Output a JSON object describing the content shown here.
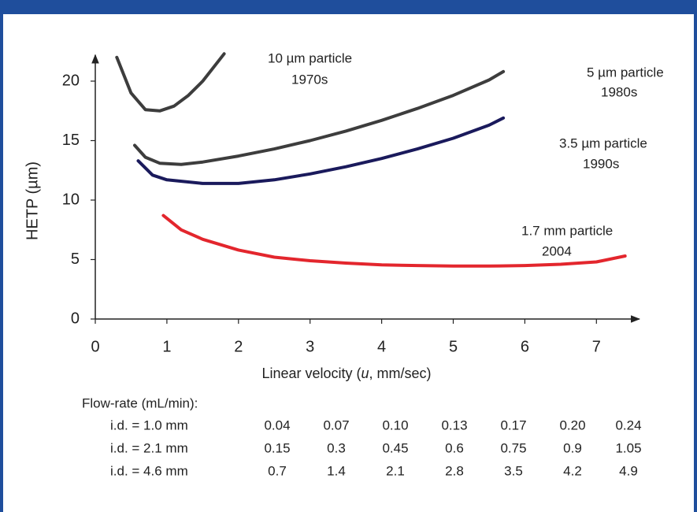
{
  "chart_data": {
    "type": "line",
    "y_label": "HETP (µm)",
    "x_label_parts": [
      "Linear velocity (",
      "u",
      ", mm/sec)"
    ],
    "xlim": [
      0,
      7.6
    ],
    "ylim": [
      0,
      22.2
    ],
    "xticks": [
      0,
      1,
      2,
      3,
      4,
      5,
      6,
      7
    ],
    "yticks": [
      0,
      5,
      10,
      15,
      20
    ],
    "grid": false,
    "series": [
      {
        "name": "10 µm particle",
        "annotation": "1970s",
        "color": "#3d3d3d",
        "x": [
          0.3,
          0.5,
          0.7,
          0.9,
          1.1,
          1.3,
          1.5,
          1.8
        ],
        "values": [
          22,
          19,
          17.6,
          17.5,
          17.9,
          18.8,
          20,
          22.3
        ]
      },
      {
        "name": "5 µm particle",
        "annotation": "1980s",
        "color": "#3d3d3d",
        "x": [
          0.55,
          0.7,
          0.9,
          1.2,
          1.5,
          2,
          2.5,
          3,
          3.5,
          4,
          4.5,
          5,
          5.5,
          5.7
        ],
        "values": [
          14.6,
          13.6,
          13.1,
          13,
          13.2,
          13.7,
          14.3,
          15,
          15.8,
          16.7,
          17.7,
          18.8,
          20.1,
          20.8
        ]
      },
      {
        "name": "3.5 µm particle",
        "annotation": "1990s",
        "color": "#1a1a5c",
        "x": [
          0.6,
          0.8,
          1,
          1.5,
          2,
          2.5,
          3,
          3.5,
          4,
          4.5,
          5,
          5.5,
          5.7
        ],
        "values": [
          13.3,
          12.1,
          11.7,
          11.4,
          11.4,
          11.7,
          12.2,
          12.8,
          13.5,
          14.3,
          15.2,
          16.3,
          16.9
        ]
      },
      {
        "name": "1.7 mm particle",
        "annotation": "2004",
        "color": "#e3262d",
        "x": [
          0.95,
          1.2,
          1.5,
          2,
          2.5,
          3,
          3.5,
          4,
          4.5,
          5,
          5.5,
          6,
          6.5,
          7,
          7.4
        ],
        "values": [
          8.7,
          7.5,
          6.7,
          5.8,
          5.2,
          4.9,
          4.7,
          4.55,
          4.5,
          4.45,
          4.45,
          4.5,
          4.6,
          4.8,
          5.3
        ]
      }
    ]
  },
  "table": {
    "title": "Flow-rate (mL/min):",
    "rows": [
      [
        "i.d. = 1.0 mm",
        "0.04",
        "0.07",
        "0.10",
        "0.13",
        "0.17",
        "0.20",
        "0.24"
      ],
      [
        "i.d. = 2.1 mm",
        "0.15",
        "0.3",
        "0.45",
        "0.6",
        "0.75",
        "0.9",
        "1.05"
      ],
      [
        "i.d. = 4.6 mm",
        "0.7",
        "1.4",
        "2.1",
        "2.8",
        "3.5",
        "4.2",
        "4.9"
      ]
    ]
  }
}
